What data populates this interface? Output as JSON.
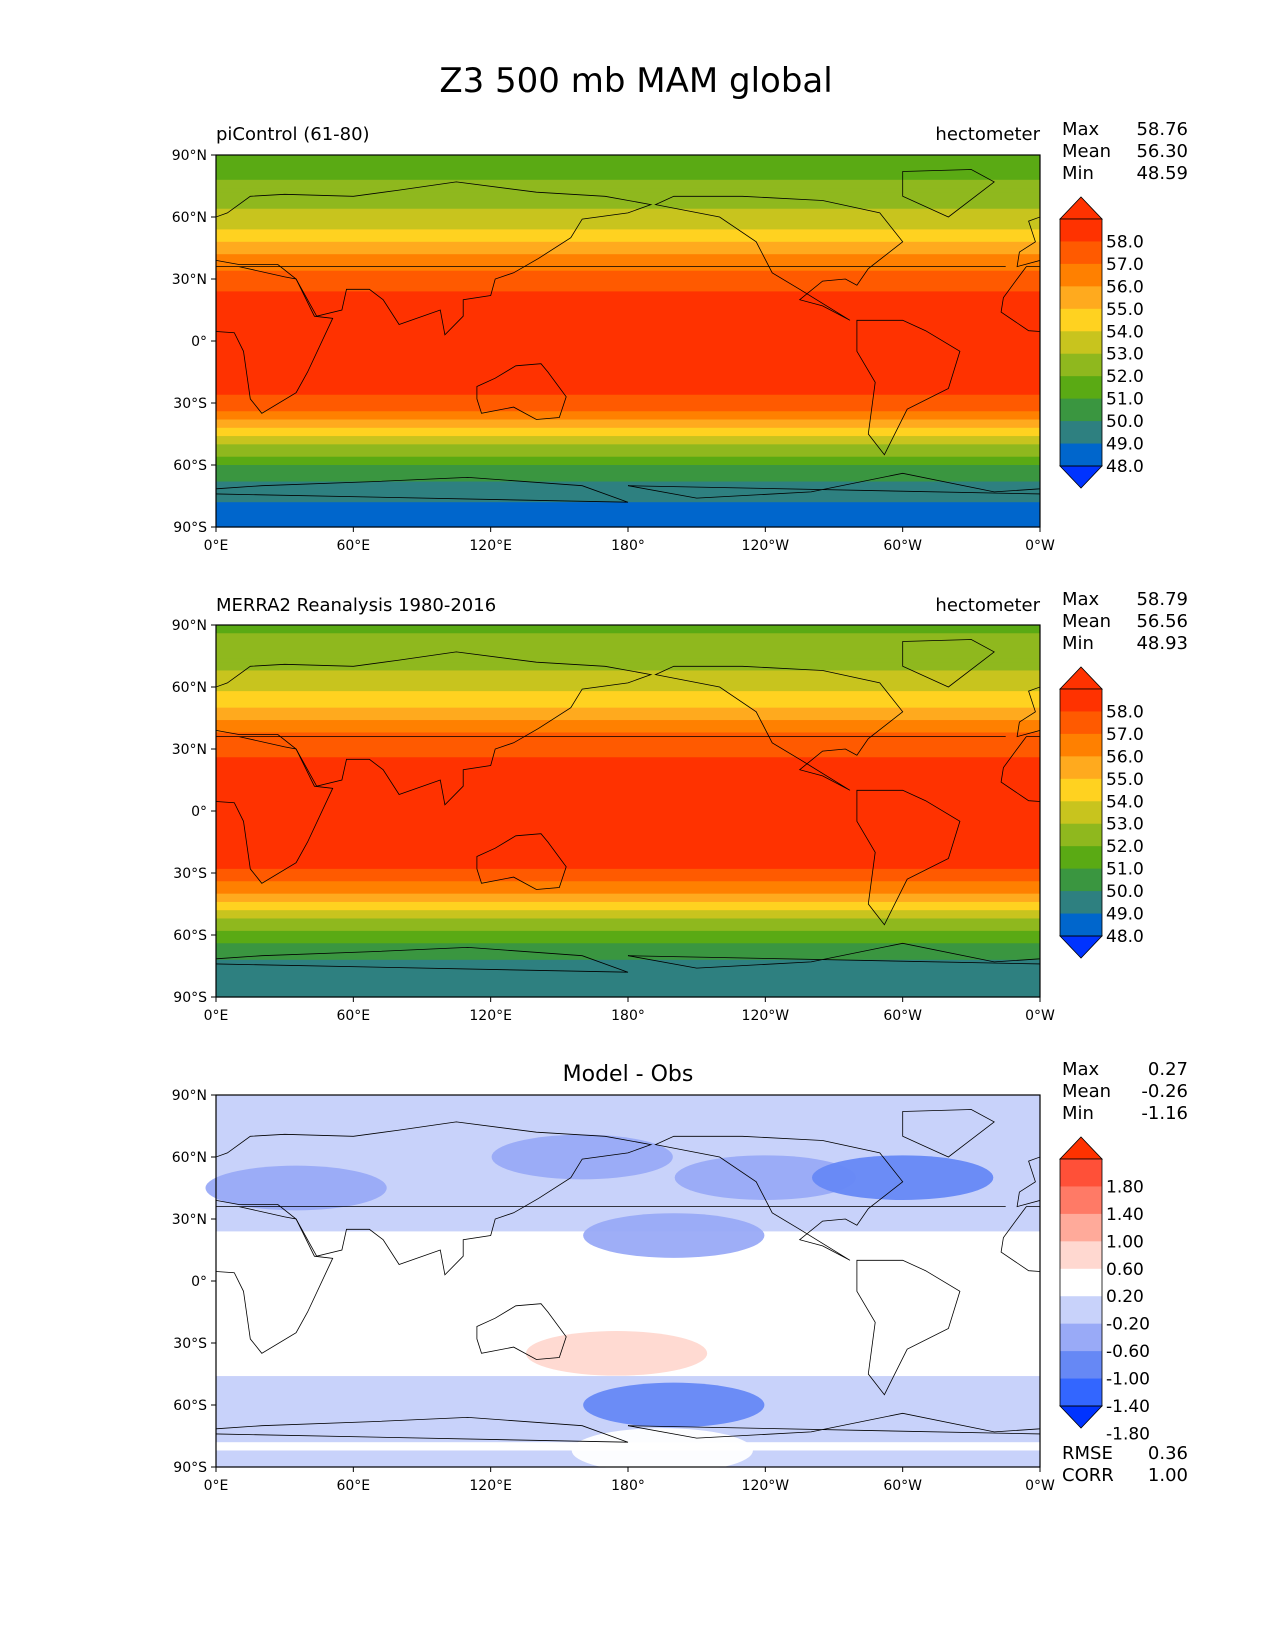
{
  "figure_title": "Z3 500 mb MAM global",
  "x_tick_labels": [
    "0°E",
    "60°E",
    "120°E",
    "180°",
    "120°W",
    "60°W",
    "0°W"
  ],
  "y_tick_labels": [
    "90°N",
    "60°N",
    "30°N",
    "0°",
    "30°S",
    "60°S",
    "90°S"
  ],
  "colors": {
    "abs_levels": [
      "#0033ff",
      "#0066cc",
      "#2e8080",
      "#3a9640",
      "#5aaa14",
      "#8fb81e",
      "#c8c41e",
      "#ffd220",
      "#ffaa1e",
      "#ff8000",
      "#ff5a00",
      "#ff3200",
      "#ff3200"
    ],
    "diff_levels": [
      "#0033ff",
      "#3366ff",
      "#6688f5",
      "#99aaf7",
      "#c8d2fa",
      "#ffffff",
      "#ffd8d0",
      "#ffaa9a",
      "#ff7a66",
      "#ff5038",
      "#ff3200"
    ]
  },
  "chart_data": [
    {
      "type": "heatmap",
      "subtitle_left": "piControl (61-80)",
      "subtitle_right": "hectometer",
      "stats": [
        {
          "label": "Max",
          "value": "58.76"
        },
        {
          "label": "Mean",
          "value": "56.30"
        },
        {
          "label": "Min",
          "value": "48.59"
        }
      ],
      "colorbar_ticks": [
        "58.0",
        "57.0",
        "56.0",
        "55.0",
        "54.0",
        "53.0",
        "52.0",
        "51.0",
        "50.0",
        "49.0",
        "48.0"
      ],
      "xlim": [
        0,
        360
      ],
      "ylim": [
        -90,
        90
      ],
      "zonal_profile": [
        {
          "lat": 90,
          "value": 51.6
        },
        {
          "lat": 80,
          "value": 51.9
        },
        {
          "lat": 70,
          "value": 52.5
        },
        {
          "lat": 60,
          "value": 53.3
        },
        {
          "lat": 50,
          "value": 54.6
        },
        {
          "lat": 40,
          "value": 56.3
        },
        {
          "lat": 30,
          "value": 57.5
        },
        {
          "lat": 20,
          "value": 58.3
        },
        {
          "lat": 0,
          "value": 58.6
        },
        {
          "lat": -20,
          "value": 58.4
        },
        {
          "lat": -30,
          "value": 57.6
        },
        {
          "lat": -40,
          "value": 55.6
        },
        {
          "lat": -50,
          "value": 53.2
        },
        {
          "lat": -60,
          "value": 51.0
        },
        {
          "lat": -70,
          "value": 49.7
        },
        {
          "lat": -80,
          "value": 48.9
        },
        {
          "lat": -90,
          "value": 48.8
        }
      ]
    },
    {
      "type": "heatmap",
      "subtitle_left": "MERRA2 Reanalysis 1980-2016",
      "subtitle_right": "hectometer",
      "stats": [
        {
          "label": "Max",
          "value": "58.79"
        },
        {
          "label": "Mean",
          "value": "56.56"
        },
        {
          "label": "Min",
          "value": "48.93"
        }
      ],
      "colorbar_ticks": [
        "58.0",
        "57.0",
        "56.0",
        "55.0",
        "54.0",
        "53.0",
        "52.0",
        "51.0",
        "50.0",
        "49.0",
        "48.0"
      ],
      "xlim": [
        0,
        360
      ],
      "ylim": [
        -90,
        90
      ],
      "zonal_profile": [
        {
          "lat": 90,
          "value": 51.8
        },
        {
          "lat": 80,
          "value": 52.2
        },
        {
          "lat": 70,
          "value": 52.8
        },
        {
          "lat": 60,
          "value": 53.6
        },
        {
          "lat": 50,
          "value": 55.0
        },
        {
          "lat": 40,
          "value": 56.7
        },
        {
          "lat": 30,
          "value": 57.7
        },
        {
          "lat": 20,
          "value": 58.4
        },
        {
          "lat": 0,
          "value": 58.7
        },
        {
          "lat": -20,
          "value": 58.5
        },
        {
          "lat": -30,
          "value": 57.8
        },
        {
          "lat": -40,
          "value": 56.0
        },
        {
          "lat": -50,
          "value": 53.6
        },
        {
          "lat": -60,
          "value": 51.4
        },
        {
          "lat": -70,
          "value": 50.1
        },
        {
          "lat": -80,
          "value": 49.7
        },
        {
          "lat": -90,
          "value": 49.6
        }
      ]
    },
    {
      "type": "heatmap",
      "title": "Model - Obs",
      "stats": [
        {
          "label": "Max",
          "value": "0.27"
        },
        {
          "label": "Mean",
          "value": "-0.26"
        },
        {
          "label": "Min",
          "value": "-1.16"
        }
      ],
      "bottom_stats": [
        {
          "label": "RMSE",
          "value": "0.36"
        },
        {
          "label": "CORR",
          "value": "1.00"
        }
      ],
      "colorbar_ticks": [
        "1.80",
        "1.40",
        "1.00",
        "0.60",
        "0.20",
        "-0.20",
        "-0.60",
        "-1.00",
        "-1.40",
        "-1.80"
      ],
      "xlim": [
        0,
        360
      ],
      "ylim": [
        -90,
        90
      ],
      "zonal_profile": [
        {
          "lat": 90,
          "value": -0.25
        },
        {
          "lat": 70,
          "value": -0.3
        },
        {
          "lat": 50,
          "value": -0.45
        },
        {
          "lat": 30,
          "value": -0.3
        },
        {
          "lat": 18,
          "value": -0.1
        },
        {
          "lat": 0,
          "value": -0.05
        },
        {
          "lat": -40,
          "value": -0.1
        },
        {
          "lat": -55,
          "value": -0.4
        },
        {
          "lat": -65,
          "value": -0.5
        },
        {
          "lat": -80,
          "value": -0.15
        },
        {
          "lat": -90,
          "value": -0.5
        }
      ],
      "anomalies": [
        {
          "lon": 160,
          "lat": 60,
          "value": -0.7
        },
        {
          "lon": 240,
          "lat": 50,
          "value": -0.8
        },
        {
          "lon": 300,
          "lat": 50,
          "value": -1.1
        },
        {
          "lon": 200,
          "lat": 22,
          "value": -0.7
        },
        {
          "lon": 35,
          "lat": 45,
          "value": -0.7
        },
        {
          "lon": 200,
          "lat": -60,
          "value": -1.16
        },
        {
          "lon": 175,
          "lat": -35,
          "value": 0.27
        },
        {
          "lon": 195,
          "lat": -82,
          "value": 0.0
        }
      ]
    }
  ]
}
